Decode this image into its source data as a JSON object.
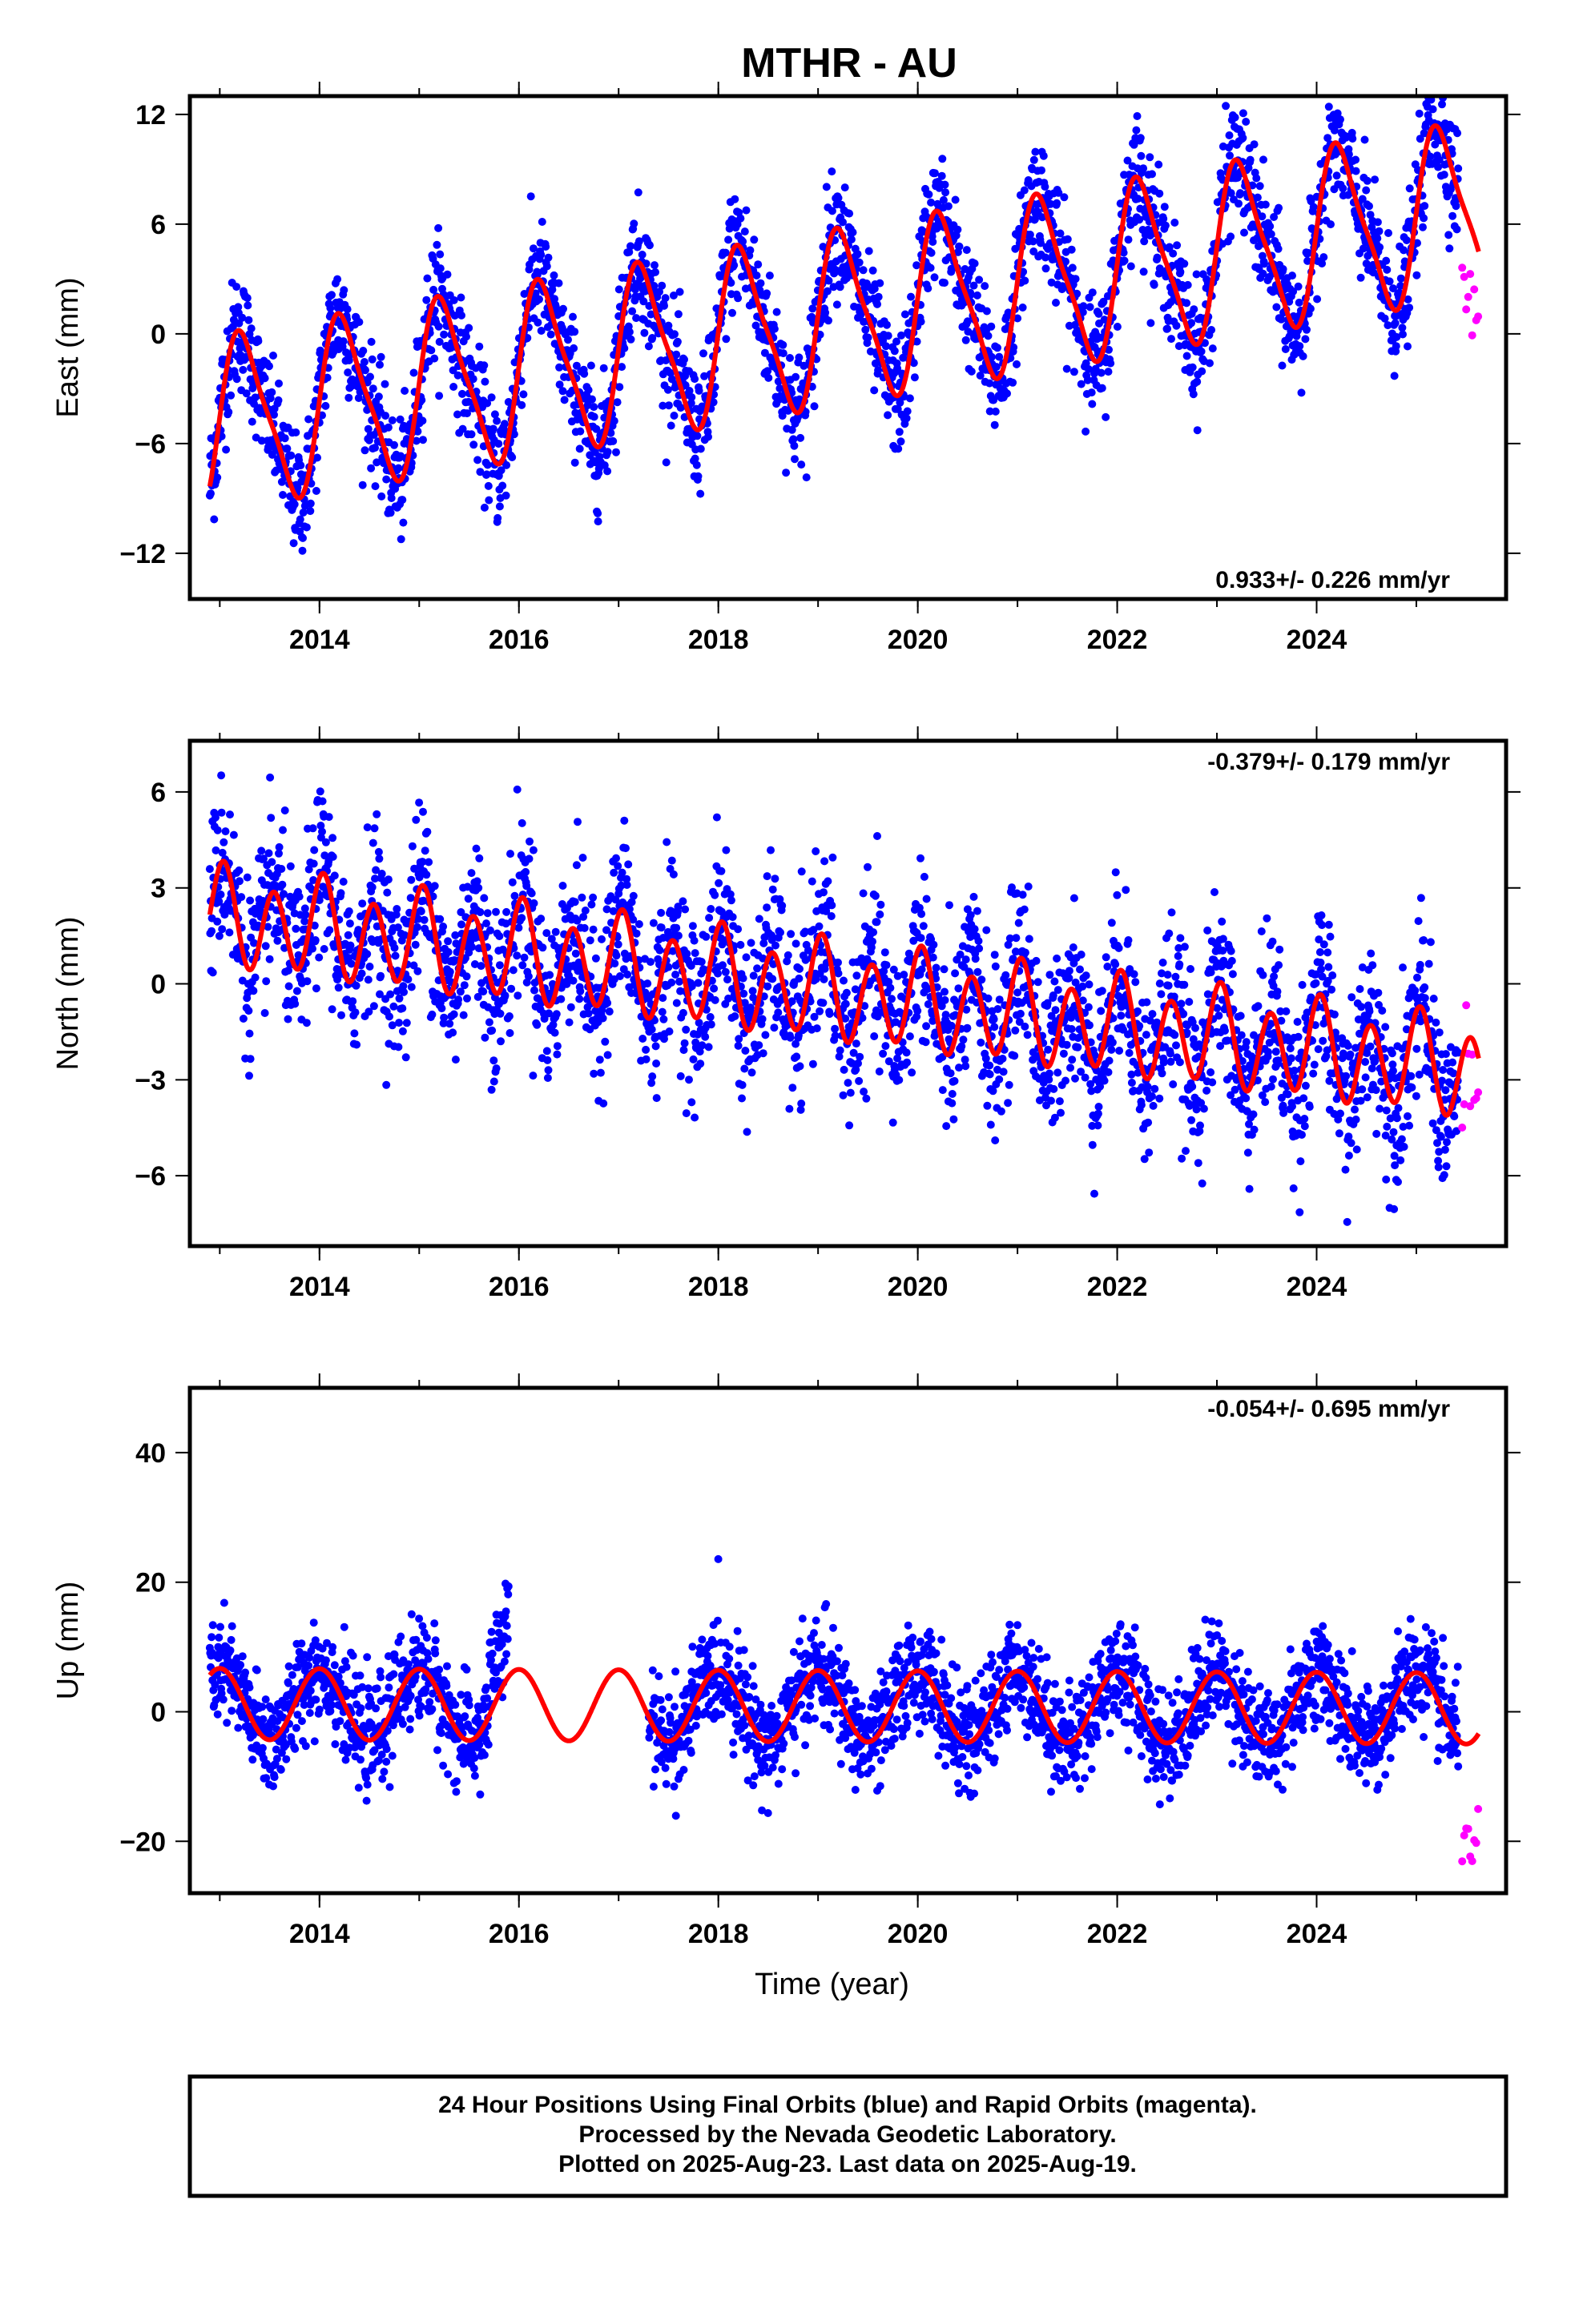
{
  "title": "MTHR - AU",
  "colors": {
    "final": "#0000ff",
    "rapid": "#ff00ff",
    "model": "#ff0000",
    "frame": "#000000"
  },
  "footer": {
    "line1": "24 Hour Positions Using Final Orbits (blue) and Rapid Orbits (magenta).",
    "line2": "Processed by the Nevada Geodetic Laboratory.",
    "line3": "Plotted on 2025-Aug-23. Last data on 2025-Aug-19."
  },
  "chart_data": [
    {
      "type": "scatter",
      "component": "east",
      "ylabel": "East (mm)",
      "xlabel": "",
      "xlim": [
        2012.7,
        2025.9
      ],
      "ylim": [
        -14.5,
        13
      ],
      "xticks": [
        2014,
        2016,
        2018,
        2020,
        2022,
        2024
      ],
      "xtick_labels": [
        "2014",
        "2016",
        "2018",
        "2020",
        "2022",
        "2024"
      ],
      "yticks": [
        -12,
        -6,
        0,
        6,
        12
      ],
      "ytick_labels": [
        "−12",
        "−6",
        "0",
        "6",
        "12"
      ],
      "rate_text": "0.933+/- 0.226 mm/yr",
      "rate_position": "bottom-right",
      "data_start": 2012.9,
      "data_end": 2025.42,
      "rapid_start": 2025.46,
      "rapid_end": 2025.63,
      "model": {
        "offset": -5.0,
        "trend_mm_per_yr": 0.933,
        "annual_amp": 4.5,
        "annual_phase": 0.24,
        "semiannual_amp": 1.0,
        "semiannual_phase": 0.12
      },
      "scatter_std_mm": 1.6
    },
    {
      "type": "scatter",
      "component": "north",
      "ylabel": "North (mm)",
      "xlabel": "",
      "xlim": [
        2012.7,
        2025.9
      ],
      "ylim": [
        -8.2,
        7.6
      ],
      "xticks": [
        2014,
        2016,
        2018,
        2020,
        2022,
        2024
      ],
      "xtick_labels": [
        "2014",
        "2016",
        "2018",
        "2020",
        "2022",
        "2024"
      ],
      "yticks": [
        -6,
        -3,
        0,
        3,
        6
      ],
      "ytick_labels": [
        "−6",
        "−3",
        "0",
        "3",
        "6"
      ],
      "rate_text": "-0.379+/- 0.179 mm/yr",
      "rate_position": "top-right",
      "data_start": 2012.9,
      "data_end": 2025.42,
      "rapid_start": 2025.46,
      "rapid_end": 2025.63,
      "model": {
        "offset": 2.1,
        "trend_mm_per_yr": -0.379,
        "annual_amp": 0.4,
        "annual_phase": 0.0,
        "semiannual_amp": 1.4,
        "semiannual_phase": 0.04
      },
      "scatter_std_mm": 1.3
    },
    {
      "type": "scatter",
      "component": "up",
      "ylabel": "Up (mm)",
      "xlabel": "Time (year)",
      "xlim": [
        2012.7,
        2025.9
      ],
      "ylim": [
        -28,
        50
      ],
      "xticks": [
        2014,
        2016,
        2018,
        2020,
        2022,
        2024
      ],
      "xtick_labels": [
        "2014",
        "2016",
        "2018",
        "2020",
        "2022",
        "2024"
      ],
      "yticks": [
        -20,
        0,
        20,
        40
      ],
      "ytick_labels": [
        "−20",
        "0",
        "20",
        "40"
      ],
      "rate_text": "-0.054+/- 0.695 mm/yr",
      "rate_position": "top-right",
      "data_start": 2012.9,
      "data_end": 2025.42,
      "rapid_start": 2025.46,
      "rapid_end": 2025.63,
      "gap": [
        2015.9,
        2017.3
      ],
      "model": {
        "offset": 1.2,
        "trend_mm_per_yr": -0.054,
        "annual_amp": 5.5,
        "annual_phase": 0.0,
        "semiannual_amp": 0.0,
        "semiannual_phase": 0.0
      },
      "scatter_std_mm": 4.0
    }
  ]
}
